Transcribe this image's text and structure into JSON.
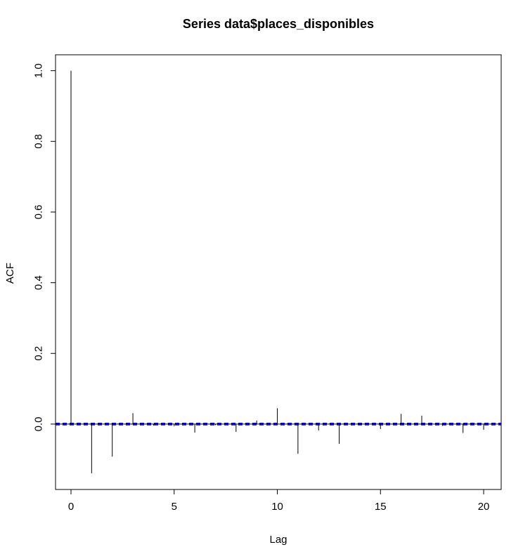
{
  "chart_data": {
    "type": "bar",
    "subtype": "acf",
    "title": "Series  data$places_disponibles",
    "xlabel": "Lag",
    "ylabel": "ACF",
    "xlim": [
      -0.75,
      20.85
    ],
    "ylim": [
      -0.185,
      1.045
    ],
    "x_ticks": [
      0,
      5,
      10,
      15,
      20
    ],
    "x_tick_labels": [
      "0",
      "5",
      "10",
      "15",
      "20"
    ],
    "y_ticks": [
      0.0,
      0.2,
      0.4,
      0.6,
      0.8,
      1.0
    ],
    "y_tick_labels": [
      "0.0",
      "0.2",
      "0.4",
      "0.6",
      "0.8",
      "1.0"
    ],
    "lags": [
      0,
      1,
      2,
      3,
      4,
      5,
      6,
      7,
      8,
      9,
      10,
      11,
      12,
      13,
      14,
      15,
      16,
      17,
      18,
      19,
      20
    ],
    "acf": [
      1.0,
      -0.139,
      -0.092,
      0.031,
      -0.004,
      -0.006,
      -0.024,
      -0.003,
      -0.022,
      0.01,
      0.045,
      -0.084,
      -0.018,
      -0.056,
      -0.003,
      -0.014,
      0.029,
      0.024,
      -0.005,
      -0.025,
      -0.016
    ],
    "confidence_limit": 0.0022,
    "grid": false,
    "colors": {
      "spike": "#000000",
      "confidence": "#0000ff",
      "zero_line": "#000000"
    }
  }
}
